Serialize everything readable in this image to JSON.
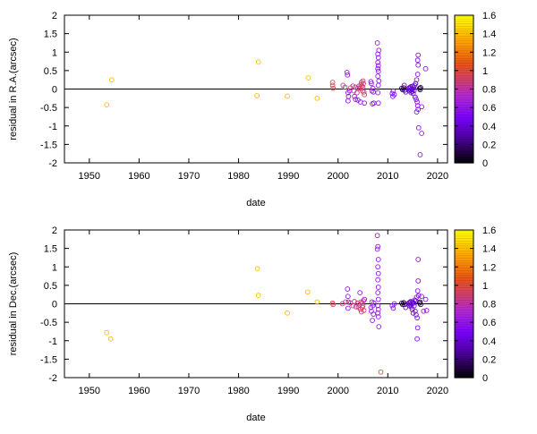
{
  "chart_data": [
    {
      "type": "scatter",
      "xlabel": "date",
      "ylabel": "residual in R.A.(arcsec)",
      "xlim": [
        1945,
        2022
      ],
      "ylim": [
        -2,
        2
      ],
      "xticks": [
        1950,
        1960,
        1970,
        1980,
        1990,
        2000,
        2010,
        2020
      ],
      "yticks": [
        -2,
        -1.5,
        -1,
        -0.5,
        0,
        0.5,
        1,
        1.5,
        2
      ],
      "zero_line": true,
      "marker": "open-circle",
      "colorbar": {
        "min": 0,
        "max": 1.6,
        "ticks": [
          0,
          0.2,
          0.4,
          0.6,
          0.8,
          1,
          1.2,
          1.4,
          1.6
        ]
      },
      "points": [
        [
          1953.5,
          -0.43,
          1.4
        ],
        [
          1954.5,
          0.25,
          1.4
        ],
        [
          1983.7,
          -0.18,
          1.4
        ],
        [
          1984.0,
          0.73,
          1.4
        ],
        [
          1989.8,
          -0.19,
          1.4
        ],
        [
          1994.0,
          0.3,
          1.4
        ],
        [
          1995.8,
          -0.25,
          1.4
        ],
        [
          1998.9,
          0.18,
          0.95
        ],
        [
          1998.9,
          0.1,
          0.95
        ],
        [
          1999.0,
          0.02,
          0.95
        ],
        [
          2001.0,
          0.1,
          0.85
        ],
        [
          2001.4,
          0.05,
          0.85
        ],
        [
          2001.8,
          0.45,
          0.6
        ],
        [
          2001.9,
          0.38,
          0.6
        ],
        [
          2002.0,
          -0.1,
          0.6
        ],
        [
          2002.1,
          -0.2,
          0.6
        ],
        [
          2002.0,
          -0.32,
          0.6
        ],
        [
          2002.3,
          -0.05,
          0.6
        ],
        [
          2002.5,
          0.03,
          0.85
        ],
        [
          2003.0,
          0.08,
          0.85
        ],
        [
          2003.2,
          -0.05,
          0.85
        ],
        [
          2003.5,
          0.05,
          0.85
        ],
        [
          2003.8,
          -0.1,
          0.85
        ],
        [
          2004.0,
          0.02,
          0.85
        ],
        [
          2004.2,
          0.08,
          0.85
        ],
        [
          2004.5,
          0.02,
          0.9
        ],
        [
          2004.6,
          0.12,
          0.9
        ],
        [
          2004.7,
          0.18,
          0.9
        ],
        [
          2004.8,
          0.08,
          0.9
        ],
        [
          2004.9,
          -0.05,
          0.9
        ],
        [
          2005.0,
          0.05,
          0.9
        ],
        [
          2005.1,
          0.15,
          0.9
        ],
        [
          2005.2,
          -0.08,
          0.9
        ],
        [
          2005.3,
          -0.15,
          0.9
        ],
        [
          2005.0,
          0.22,
          0.9
        ],
        [
          2003.3,
          -0.2,
          0.6
        ],
        [
          2003.5,
          -0.28,
          0.6
        ],
        [
          2004.0,
          -0.3,
          0.6
        ],
        [
          2004.5,
          -0.35,
          0.6
        ],
        [
          2005.3,
          -0.38,
          0.6
        ],
        [
          2006.6,
          0.2,
          0.6
        ],
        [
          2006.7,
          0.15,
          0.6
        ],
        [
          2006.8,
          -0.05,
          0.6
        ],
        [
          2006.9,
          -0.4,
          0.6
        ],
        [
          2007.0,
          0.02,
          0.6
        ],
        [
          2007.1,
          -0.08,
          0.6
        ],
        [
          2007.2,
          -0.38,
          0.6
        ],
        [
          2007.9,
          1.25,
          0.6
        ],
        [
          2008.0,
          0.95,
          0.6
        ],
        [
          2008.1,
          0.85,
          0.6
        ],
        [
          2008.0,
          0.72,
          0.6
        ],
        [
          2008.1,
          0.63,
          0.6
        ],
        [
          2008.0,
          0.55,
          0.6
        ],
        [
          2008.1,
          0.48,
          0.6
        ],
        [
          2008.0,
          0.35,
          0.6
        ],
        [
          2008.1,
          0.1,
          0.6
        ],
        [
          2008.0,
          -0.1,
          0.6
        ],
        [
          2008.1,
          -0.38,
          0.6
        ],
        [
          2008.2,
          0.22,
          0.6
        ],
        [
          2008.2,
          1.05,
          0.6
        ],
        [
          2010.9,
          -0.12,
          0.55
        ],
        [
          2011.1,
          -0.05,
          0.55
        ],
        [
          2011.3,
          -0.15,
          0.55
        ],
        [
          2011.0,
          -0.2,
          0.55
        ],
        [
          2012.8,
          0.02,
          0.1
        ],
        [
          2013.0,
          -0.02,
          0.1
        ],
        [
          2013.2,
          0.03,
          0.1
        ],
        [
          2013.4,
          -0.03,
          0.1
        ],
        [
          2013.3,
          0.1,
          0.45
        ],
        [
          2013.6,
          -0.08,
          0.45
        ],
        [
          2014.2,
          0.02,
          0.4
        ],
        [
          2014.3,
          -0.05,
          0.4
        ],
        [
          2014.4,
          0.04,
          0.4
        ],
        [
          2014.5,
          -0.02,
          0.4
        ],
        [
          2014.6,
          0.06,
          0.4
        ],
        [
          2014.7,
          -0.1,
          0.4
        ],
        [
          2014.8,
          0.0,
          0.4
        ],
        [
          2014.9,
          -0.06,
          0.4
        ],
        [
          2015.0,
          0.08,
          0.4
        ],
        [
          2015.1,
          -0.12,
          0.4
        ],
        [
          2015.2,
          0.03,
          0.4
        ],
        [
          2015.3,
          -0.04,
          0.4
        ],
        [
          2015.4,
          0.1,
          0.4
        ],
        [
          2015.5,
          -0.22,
          0.4
        ],
        [
          2015.6,
          0.15,
          0.4
        ],
        [
          2015.7,
          -0.28,
          0.55
        ],
        [
          2015.8,
          0.25,
          0.55
        ],
        [
          2015.9,
          -0.35,
          0.55
        ],
        [
          2016.0,
          -0.45,
          0.55
        ],
        [
          2016.0,
          0.4,
          0.55
        ],
        [
          2016.1,
          -0.55,
          0.55
        ],
        [
          2016.1,
          0.65,
          0.55
        ],
        [
          2016.0,
          0.78,
          0.55
        ],
        [
          2016.1,
          0.92,
          0.55
        ],
        [
          2015.8,
          -0.62,
          0.55
        ],
        [
          2016.2,
          -1.05,
          0.55
        ],
        [
          2016.4,
          0.02,
          0.1
        ],
        [
          2016.6,
          0.04,
          0.1
        ],
        [
          2016.5,
          -0.02,
          0.1
        ],
        [
          2016.8,
          -1.2,
          0.6
        ],
        [
          2016.5,
          -1.78,
          0.6
        ],
        [
          2016.8,
          -0.48,
          0.6
        ],
        [
          2017.6,
          0.55,
          0.6
        ]
      ]
    },
    {
      "type": "scatter",
      "xlabel": "date",
      "ylabel": "residual in Dec.(arcsec)",
      "xlim": [
        1945,
        2022
      ],
      "ylim": [
        -2,
        2
      ],
      "xticks": [
        1950,
        1960,
        1970,
        1980,
        1990,
        2000,
        2010,
        2020
      ],
      "yticks": [
        -2,
        -1.5,
        -1,
        -0.5,
        0,
        0.5,
        1,
        1.5,
        2
      ],
      "zero_line": true,
      "marker": "open-circle",
      "colorbar": {
        "min": 0,
        "max": 1.6,
        "ticks": [
          0,
          0.2,
          0.4,
          0.6,
          0.8,
          1,
          1.2,
          1.4,
          1.6
        ]
      },
      "points": [
        [
          1953.5,
          -0.78,
          1.4
        ],
        [
          1954.3,
          -0.95,
          1.4
        ],
        [
          1983.8,
          0.95,
          1.4
        ],
        [
          1984.0,
          0.23,
          1.4
        ],
        [
          1989.8,
          -0.25,
          1.4
        ],
        [
          1993.9,
          0.32,
          1.4
        ],
        [
          1995.8,
          0.05,
          1.4
        ],
        [
          1998.9,
          0.02,
          0.95
        ],
        [
          1999.0,
          -0.02,
          0.95
        ],
        [
          2000.9,
          0.0,
          0.85
        ],
        [
          2001.5,
          0.05,
          0.85
        ],
        [
          2001.9,
          0.4,
          0.6
        ],
        [
          2002.0,
          0.2,
          0.6
        ],
        [
          2002.1,
          0.05,
          0.6
        ],
        [
          2002.0,
          -0.12,
          0.6
        ],
        [
          2002.5,
          0.02,
          0.85
        ],
        [
          2003.0,
          -0.05,
          0.85
        ],
        [
          2003.3,
          0.06,
          0.85
        ],
        [
          2003.6,
          -0.08,
          0.85
        ],
        [
          2003.9,
          0.02,
          0.85
        ],
        [
          2004.1,
          -0.1,
          0.85
        ],
        [
          2004.3,
          -0.03,
          0.85
        ],
        [
          2004.5,
          -0.15,
          0.9
        ],
        [
          2004.6,
          0.05,
          0.9
        ],
        [
          2004.7,
          -0.22,
          0.9
        ],
        [
          2004.8,
          0.02,
          0.9
        ],
        [
          2004.9,
          -0.1,
          0.9
        ],
        [
          2005.0,
          -0.05,
          0.9
        ],
        [
          2005.1,
          0.08,
          0.9
        ],
        [
          2005.2,
          -0.18,
          0.9
        ],
        [
          2005.3,
          0.12,
          0.6
        ],
        [
          2004.4,
          0.3,
          0.6
        ],
        [
          2006.6,
          -0.1,
          0.6
        ],
        [
          2006.7,
          -0.2,
          0.6
        ],
        [
          2006.8,
          0.05,
          0.6
        ],
        [
          2006.9,
          -0.45,
          0.6
        ],
        [
          2007.0,
          -0.05,
          0.6
        ],
        [
          2007.1,
          -0.28,
          0.6
        ],
        [
          2007.2,
          0.02,
          0.6
        ],
        [
          2007.9,
          1.85,
          0.6
        ],
        [
          2008.0,
          1.55,
          0.6
        ],
        [
          2008.1,
          1.2,
          0.6
        ],
        [
          2008.0,
          1.0,
          0.6
        ],
        [
          2008.1,
          0.82,
          0.6
        ],
        [
          2008.0,
          0.65,
          0.6
        ],
        [
          2008.1,
          0.45,
          0.6
        ],
        [
          2008.0,
          0.3,
          0.6
        ],
        [
          2008.1,
          0.12,
          0.6
        ],
        [
          2008.0,
          -0.05,
          0.6
        ],
        [
          2008.1,
          -0.15,
          0.6
        ],
        [
          2008.0,
          -0.25,
          0.6
        ],
        [
          2008.1,
          -0.35,
          0.6
        ],
        [
          2008.2,
          -0.62,
          0.6
        ],
        [
          2007.9,
          1.48,
          0.6
        ],
        [
          2008.6,
          -1.85,
          1.0
        ],
        [
          2010.9,
          -0.05,
          0.55
        ],
        [
          2011.1,
          -0.12,
          0.55
        ],
        [
          2011.3,
          0.0,
          0.55
        ],
        [
          2012.8,
          0.02,
          0.1
        ],
        [
          2013.0,
          -0.02,
          0.1
        ],
        [
          2013.2,
          0.03,
          0.1
        ],
        [
          2013.4,
          -0.02,
          0.1
        ],
        [
          2013.6,
          -0.1,
          0.45
        ],
        [
          2014.2,
          0.02,
          0.4
        ],
        [
          2014.3,
          -0.05,
          0.4
        ],
        [
          2014.4,
          0.04,
          0.4
        ],
        [
          2014.5,
          -0.02,
          0.4
        ],
        [
          2014.6,
          0.06,
          0.4
        ],
        [
          2014.7,
          -0.08,
          0.4
        ],
        [
          2014.8,
          0.0,
          0.4
        ],
        [
          2014.9,
          -0.15,
          0.4
        ],
        [
          2015.0,
          0.05,
          0.4
        ],
        [
          2015.1,
          -0.25,
          0.4
        ],
        [
          2015.2,
          0.02,
          0.4
        ],
        [
          2015.3,
          -0.05,
          0.4
        ],
        [
          2015.4,
          0.1,
          0.4
        ],
        [
          2015.5,
          -0.2,
          0.4
        ],
        [
          2015.6,
          0.08,
          0.4
        ],
        [
          2015.7,
          -0.3,
          0.55
        ],
        [
          2015.8,
          0.18,
          0.55
        ],
        [
          2015.9,
          -0.38,
          0.55
        ],
        [
          2016.0,
          0.35,
          0.55
        ],
        [
          2016.0,
          -0.65,
          0.55
        ],
        [
          2016.1,
          0.62,
          0.55
        ],
        [
          2016.1,
          1.2,
          0.55
        ],
        [
          2015.9,
          -0.95,
          0.55
        ],
        [
          2016.2,
          0.22,
          0.55
        ],
        [
          2016.4,
          0.02,
          0.1
        ],
        [
          2016.6,
          -0.02,
          0.1
        ],
        [
          2016.5,
          0.05,
          0.1
        ],
        [
          2016.8,
          0.2,
          0.6
        ],
        [
          2017.2,
          -0.2,
          0.6
        ],
        [
          2017.6,
          0.12,
          0.6
        ],
        [
          2017.8,
          -0.18,
          0.6
        ]
      ]
    }
  ]
}
